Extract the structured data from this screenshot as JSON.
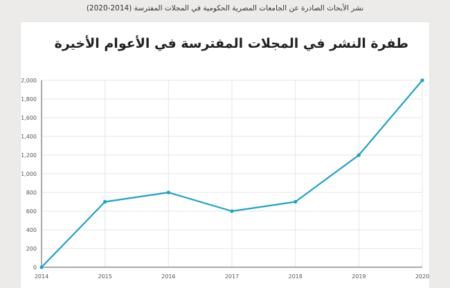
{
  "page_caption": "نشر الأبحاث الصادرة عن الجامعات المصرية الحكومية في المجلات المفترسة (2014-2020)",
  "chart_data": {
    "type": "line",
    "title": "طفرة النشر في المجلات المفترسة في الأعوام الأخيرة",
    "xlabel": "",
    "ylabel": "",
    "categories": [
      "2014",
      "2015",
      "2016",
      "2017",
      "2018",
      "2019",
      "2020"
    ],
    "series": [
      {
        "values": [
          0,
          700,
          800,
          600,
          700,
          1200,
          2000
        ]
      }
    ],
    "ylim": [
      0,
      2000
    ],
    "yticks": [
      0,
      200,
      400,
      600,
      800,
      1000,
      1200,
      1400,
      1600,
      1800,
      2000
    ],
    "ytick_labels": [
      "0",
      "200",
      "400",
      "600",
      "800",
      "1,000",
      "1,200",
      "1,400",
      "1,600",
      "1,800",
      "2,000"
    ],
    "grid": true,
    "legend": "none",
    "colors": {
      "line": "#1aa3c8",
      "grid": "#e6e6e6",
      "axis": "#555555"
    }
  }
}
